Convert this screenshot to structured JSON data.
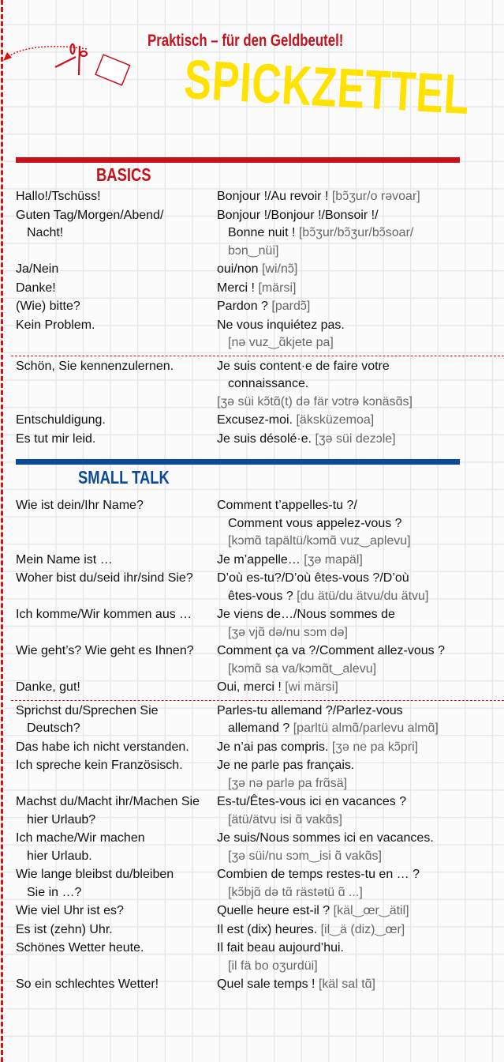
{
  "header": {
    "subtitle": "Praktisch – für den Geldbeutel!",
    "title": "SPICKZETTEL",
    "icons": [
      "scissors-icon",
      "dotted-arrow-icon",
      "paper-slip-icon"
    ]
  },
  "colors": {
    "red": "#c8101a",
    "blue": "#0b4a9b",
    "yellow": "#ffe200",
    "phonetic": "#666666"
  },
  "sections": [
    {
      "title": "BASICS",
      "rows": [
        {
          "de": [
            "Hallo!/Tschüss!"
          ],
          "fr": [
            [
              {
                "t": "Bonjour !/Au revoir ! "
              },
              {
                "p": "[bɔ̃ʒur/o rəvoar]"
              }
            ]
          ]
        },
        {
          "de": [
            "Guten Tag/Morgen/Abend/",
            "Nacht!"
          ],
          "fr": [
            [
              {
                "t": "Bonjour !/Bonjour !/Bonsoir !/"
              }
            ],
            [
              {
                "t": "Bonne nuit ! "
              },
              {
                "p": "[bɔ̃ʒur/bɔ̃ʒur/bɔ̃soar/"
              }
            ],
            [
              {
                "p": "bɔn‿nüi]"
              }
            ]
          ]
        },
        {
          "de": [
            "Ja/Nein"
          ],
          "fr": [
            [
              {
                "t": "oui/non "
              },
              {
                "p": "[wi/nɔ̃]"
              }
            ]
          ]
        },
        {
          "de": [
            "Danke!"
          ],
          "fr": [
            [
              {
                "t": "Merci ! "
              },
              {
                "p": "[märsi]"
              }
            ]
          ]
        },
        {
          "de": [
            "(Wie) bitte?"
          ],
          "fr": [
            [
              {
                "t": "Pardon ? "
              },
              {
                "p": "[pardɔ̃]"
              }
            ]
          ]
        },
        {
          "de": [
            "Kein Problem."
          ],
          "fr": [
            [
              {
                "t": "Ne vous inquiétez pas."
              }
            ],
            [
              {
                "p": "[nə vuz‿ɑ̃kjete pa]"
              }
            ]
          ]
        },
        {
          "divider": true
        },
        {
          "de": [
            "Schön, Sie kennenzulernen."
          ],
          "fr": [
            [
              {
                "t": "Je suis content·e de faire votre"
              }
            ],
            [
              {
                "t": "connaissance."
              }
            ],
            [
              {
                "p": "[ʒə süi kɔ̃tɑ̃(t) də fär vɔtrə kɔnäsɑ̃s]",
                "noindent": true
              }
            ]
          ]
        },
        {
          "de": [
            "Entschuldigung."
          ],
          "fr": [
            [
              {
                "t": "Excusez-moi. "
              },
              {
                "p": "[äksküzemoa]"
              }
            ]
          ]
        },
        {
          "de": [
            "Es tut mir leid."
          ],
          "fr": [
            [
              {
                "t": "Je suis désolé·e. "
              },
              {
                "p": "[ʒə süi dezɔle]"
              }
            ]
          ]
        }
      ]
    },
    {
      "title": "SMALL TALK",
      "rows": [
        {
          "de": [
            "Wie ist dein/Ihr Name?"
          ],
          "fr": [
            [
              {
                "t": "Comment t’appelles-tu ?/"
              }
            ],
            [
              {
                "t": "Comment vous appelez-vous ?"
              }
            ],
            [
              {
                "p": "[kɔmɑ̃ tapältü/kɔmɑ̃ vuz‿aplevu]"
              }
            ]
          ]
        },
        {
          "de": [
            "Mein Name ist …"
          ],
          "fr": [
            [
              {
                "t": "Je m’appelle… "
              },
              {
                "p": "[ʒə mapäl]"
              }
            ]
          ]
        },
        {
          "de": [
            "Woher bist du/seid ihr/sind Sie?"
          ],
          "fr": [
            [
              {
                "t": "D’où es-tu?/D’où êtes-vous ?/D’où"
              }
            ],
            [
              {
                "t": "êtes-vous ? "
              },
              {
                "p": "[du ätü/du ätvu/du ätvu]"
              }
            ]
          ]
        },
        {
          "de": [
            "Ich komme/Wir kommen aus …"
          ],
          "fr": [
            [
              {
                "t": "Je viens de…/Nous sommes de"
              }
            ],
            [
              {
                "p": "[ʒə vjɑ̃ də/nu sɔm də]"
              }
            ]
          ]
        },
        {
          "de": [
            "Wie geht’s? Wie geht es Ihnen?"
          ],
          "fr": [
            [
              {
                "t": "Comment ça va ?/Comment allez-vous ?"
              }
            ],
            [
              {
                "p": "[kɔmɑ̃ sa va/kɔmɑ̃t‿alevu]"
              }
            ]
          ]
        },
        {
          "de": [
            "Danke, gut!"
          ],
          "fr": [
            [
              {
                "t": "Oui, merci ! "
              },
              {
                "p": "[wi märsi]"
              }
            ]
          ]
        },
        {
          "divider": true
        },
        {
          "de": [
            "Sprichst du/Sprechen Sie",
            "Deutsch?"
          ],
          "fr": [
            [
              {
                "t": "Parles-tu allemand ?/Parlez-vous"
              }
            ],
            [
              {
                "t": "allemand ? "
              },
              {
                "p": "[parltü almɑ̃/parlevu almɑ̃]"
              }
            ]
          ]
        },
        {
          "de": [
            "Das habe ich nicht verstanden."
          ],
          "fr": [
            [
              {
                "t": "Je n’ai pas compris. "
              },
              {
                "p": "[ʒə ne pa kɔ̃pri]"
              }
            ]
          ]
        },
        {
          "de": [
            "Ich spreche kein Französisch."
          ],
          "fr": [
            [
              {
                "t": "Je ne parle pas français."
              }
            ],
            [
              {
                "p": "[ʒə nə parlə pa frɑ̃sä]"
              }
            ]
          ]
        },
        {
          "de": [
            "Machst du/Macht ihr/Machen Sie",
            "hier Urlaub?"
          ],
          "fr": [
            [
              {
                "t": "Es-tu/Êtes-vous ici en vacances ?"
              }
            ],
            [
              {
                "p": "[ätü/ätvu isi ɑ̃ vakɑ̃s]"
              }
            ]
          ]
        },
        {
          "de": [
            "Ich mache/Wir machen",
            "hier Urlaub."
          ],
          "fr": [
            [
              {
                "t": "Je suis/Nous sommes ici en vacances."
              }
            ],
            [
              {
                "p": "[ʒə süi/nu sɔm‿isi ɑ̃ vakɑ̃s]"
              }
            ]
          ]
        },
        {
          "de": [
            "Wie lange bleibst du/bleiben",
            "Sie in …?"
          ],
          "fr": [
            [
              {
                "t": "Combien de temps restes-tu en … ?"
              }
            ],
            [
              {
                "p": "[kɔ̃bjɑ̃ də tɑ̃ rästətü ɑ̃ ...]"
              }
            ]
          ]
        },
        {
          "de": [
            "Wie viel Uhr ist es?"
          ],
          "fr": [
            [
              {
                "t": "Quelle heure est-il ? "
              },
              {
                "p": "[käl‿œr‿ätil]"
              }
            ]
          ]
        },
        {
          "de": [
            "Es ist (zehn) Uhr."
          ],
          "fr": [
            [
              {
                "t": "Il est (dix) heures. "
              },
              {
                "p": "[il‿ä (diz)‿œr]"
              }
            ]
          ]
        },
        {
          "de": [
            "Schönes Wetter heute."
          ],
          "fr": [
            [
              {
                "t": "Il fait beau aujourd’hui."
              }
            ],
            [
              {
                "p": "[il fä bo oʒurdüi]"
              }
            ]
          ]
        },
        {
          "de": [
            "So ein schlechtes Wetter!"
          ],
          "fr": [
            [
              {
                "t": "Quel sale temps ! "
              },
              {
                "p": "[käl sal tɑ̃]"
              }
            ]
          ]
        }
      ]
    }
  ]
}
